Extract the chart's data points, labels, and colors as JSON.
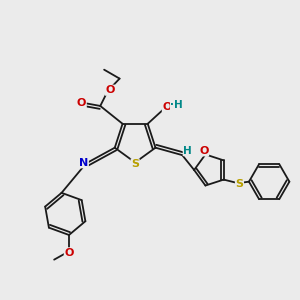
{
  "bg_color": "#ebebeb",
  "bond_color": "#1a1a1a",
  "atom_colors": {
    "O": "#cc0000",
    "S": "#b8a000",
    "N": "#0000cc",
    "H": "#008888",
    "C": "#1a1a1a"
  },
  "figsize": [
    3.0,
    3.0
  ],
  "dpi": 100
}
